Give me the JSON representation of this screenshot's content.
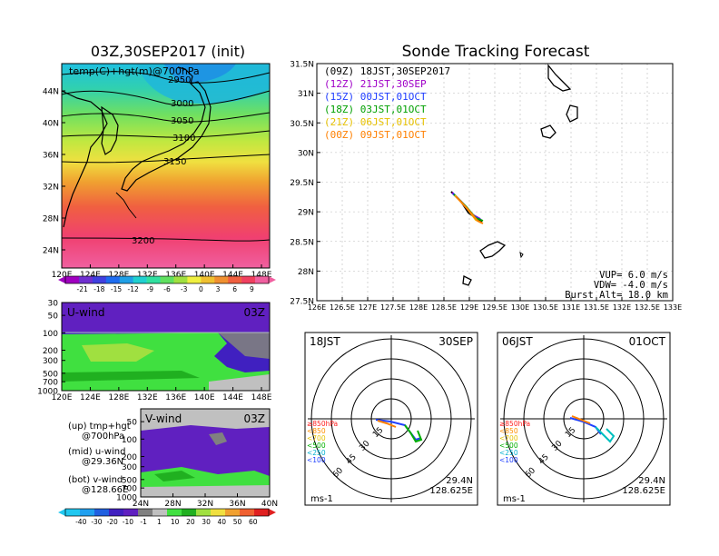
{
  "left_title": "03Z,30SEP2017 (init)",
  "right_title": "Sonde Tracking Forecast",
  "map_panel": {
    "label": "temp(C)+hgt(m)@700hPa",
    "contour_labels": [
      "2950",
      "3000",
      "3050",
      "3100",
      "3150",
      "3200"
    ],
    "y_ticks": [
      "44N",
      "40N",
      "36N",
      "32N",
      "28N",
      "24N"
    ],
    "x_ticks": [
      "120E",
      "124E",
      "128E",
      "132E",
      "136E",
      "140E",
      "144E",
      "148E"
    ]
  },
  "temp_colorbar": [
    "-21",
    "-18",
    "-15",
    "-12",
    "-9",
    "-6",
    "-3",
    "0",
    "3",
    "6",
    "9"
  ],
  "uwind_panel": {
    "label": "U-wind",
    "time": "03Z",
    "y_ticks": [
      "30",
      "50",
      "100",
      "200",
      "300",
      "500",
      "700",
      "1000"
    ],
    "x_ticks": [
      "120E",
      "124E",
      "128E",
      "132E",
      "136E",
      "140E",
      "144E",
      "148E"
    ]
  },
  "vwind_panel": {
    "label": "V-wind",
    "time": "03Z",
    "y_ticks": [
      "50",
      "100",
      "200",
      "300",
      "500",
      "700",
      "1000"
    ],
    "x_ticks": [
      "24N",
      "28N",
      "32N",
      "36N",
      "40N"
    ]
  },
  "wind_colorbar": [
    "-40",
    "-30",
    "-20",
    "-10",
    "-1",
    "1",
    "10",
    "20",
    "30",
    "40",
    "50",
    "60"
  ],
  "legend_notes": [
    {
      "a": "(up) tmp+hgt",
      "b": "@700hPa"
    },
    {
      "a": "(mid) u-wind",
      "b": "@29.36N"
    },
    {
      "a": "(bot) v-wind",
      "b": "@128.66E"
    }
  ],
  "track_map": {
    "y_ticks": [
      "31.5N",
      "31N",
      "30.5N",
      "30N",
      "29.5N",
      "29N",
      "28.5N",
      "28N",
      "27.5N"
    ],
    "x_ticks": [
      "126E",
      "126.5E",
      "127E",
      "127.5E",
      "128E",
      "128.5E",
      "129E",
      "129.5E",
      "130E",
      "130.5E",
      "131E",
      "131.5E",
      "132E",
      "132.5E",
      "133E"
    ],
    "launches": [
      {
        "label": "(09Z)  18JST,30SEP2017",
        "color": "#000000"
      },
      {
        "label": "(12Z)  21JST,30SEP",
        "color": "#a000c8"
      },
      {
        "label": "(15Z)  00JST,01OCT",
        "color": "#1e3cff"
      },
      {
        "label": "(18Z)  03JST,01OCT",
        "color": "#00a000"
      },
      {
        "label": "(21Z)  06JST,01OCT",
        "color": "#e6c000"
      },
      {
        "label": "(00Z)  09JST,01OCT",
        "color": "#ff8000"
      }
    ],
    "vup": "VUP=   6.0  m/s",
    "vdw": "VDW=  -4.0  m/s",
    "burst": "Burst Alt=  18.0  km"
  },
  "hodo_left": {
    "time": "18JST",
    "date": "30SEP",
    "lat": "29.4N",
    "lon": "128.625E",
    "unit": "ms-1",
    "rings": [
      "15",
      "30",
      "45",
      "60"
    ]
  },
  "hodo_right": {
    "time": "06JST",
    "date": "01OCT",
    "lat": "29.4N",
    "lon": "128.625E",
    "unit": "ms-1",
    "rings": [
      "15",
      "30",
      "45",
      "60"
    ]
  },
  "hodo_levels": [
    {
      "label": "≥850hPa",
      "color": "#ff2020"
    },
    {
      "label": "<850",
      "color": "#ff9000"
    },
    {
      "label": "<700",
      "color": "#e6c000"
    },
    {
      "label": "<500",
      "color": "#00b000"
    },
    {
      "label": "<250",
      "color": "#00b0d0"
    },
    {
      "label": "<100",
      "color": "#2040ff"
    }
  ],
  "colors": {
    "temp_scale": [
      "#a000c0",
      "#7030d0",
      "#4040e0",
      "#1e6cf0",
      "#20a0e6",
      "#20d0d0",
      "#30e0a0",
      "#60e060",
      "#a0e040",
      "#f0f040",
      "#f0c030",
      "#f09030",
      "#f06040",
      "#f04060",
      "#f060a0"
    ],
    "wind_scale": [
      "#20c8f0",
      "#20a0f0",
      "#2060e0",
      "#4020c0",
      "#6020c0",
      "#808080",
      "#c0c0c0",
      "#40e040",
      "#20b020",
      "#a0e040",
      "#f0e040",
      "#f0a030",
      "#f06030",
      "#e02020"
    ]
  }
}
